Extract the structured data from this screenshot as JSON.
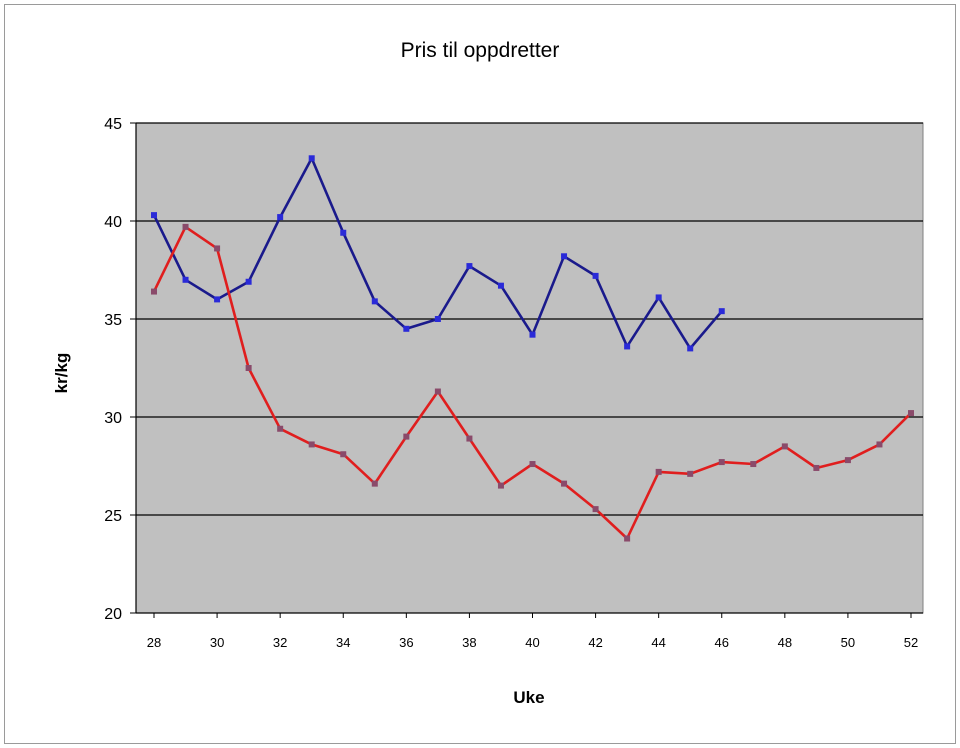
{
  "chart_data": {
    "type": "line",
    "title": "Pris til oppdretter",
    "xlabel": "Uke",
    "ylabel": "kr/kg",
    "xlim": [
      28,
      52
    ],
    "ylim": [
      20,
      45
    ],
    "x_ticks": [
      "28",
      "30",
      "32",
      "34",
      "36",
      "38",
      "40",
      "42",
      "44",
      "46",
      "48",
      "50",
      "52"
    ],
    "y_ticks": [
      "20",
      "25",
      "30",
      "35",
      "40",
      "45"
    ],
    "grid": "horizontal",
    "legend": "none",
    "plot_background": "#c0c0c0",
    "series": [
      {
        "color": "#1a1a8c",
        "x": [
          28,
          29,
          30,
          31,
          32,
          33,
          34,
          35,
          36,
          37,
          38,
          39,
          40,
          41,
          42,
          43,
          44,
          45,
          46
        ],
        "values": [
          40.3,
          37.0,
          36.0,
          36.9,
          40.2,
          43.2,
          39.4,
          35.9,
          34.5,
          35.0,
          37.7,
          36.7,
          34.2,
          38.2,
          37.2,
          33.6,
          36.1,
          33.5,
          35.4
        ]
      },
      {
        "color": "#e01e1e",
        "x": [
          28,
          29,
          30,
          31,
          32,
          33,
          34,
          35,
          36,
          37,
          38,
          39,
          40,
          41,
          42,
          43,
          44,
          45,
          46,
          47,
          48,
          49,
          50,
          51,
          52
        ],
        "values": [
          36.4,
          39.7,
          38.6,
          32.5,
          29.4,
          28.6,
          28.1,
          26.6,
          29.0,
          31.3,
          28.9,
          26.5,
          27.6,
          26.6,
          25.3,
          23.8,
          27.2,
          27.1,
          27.7,
          27.6,
          28.5,
          27.4,
          27.8,
          28.6,
          30.2
        ]
      }
    ]
  }
}
